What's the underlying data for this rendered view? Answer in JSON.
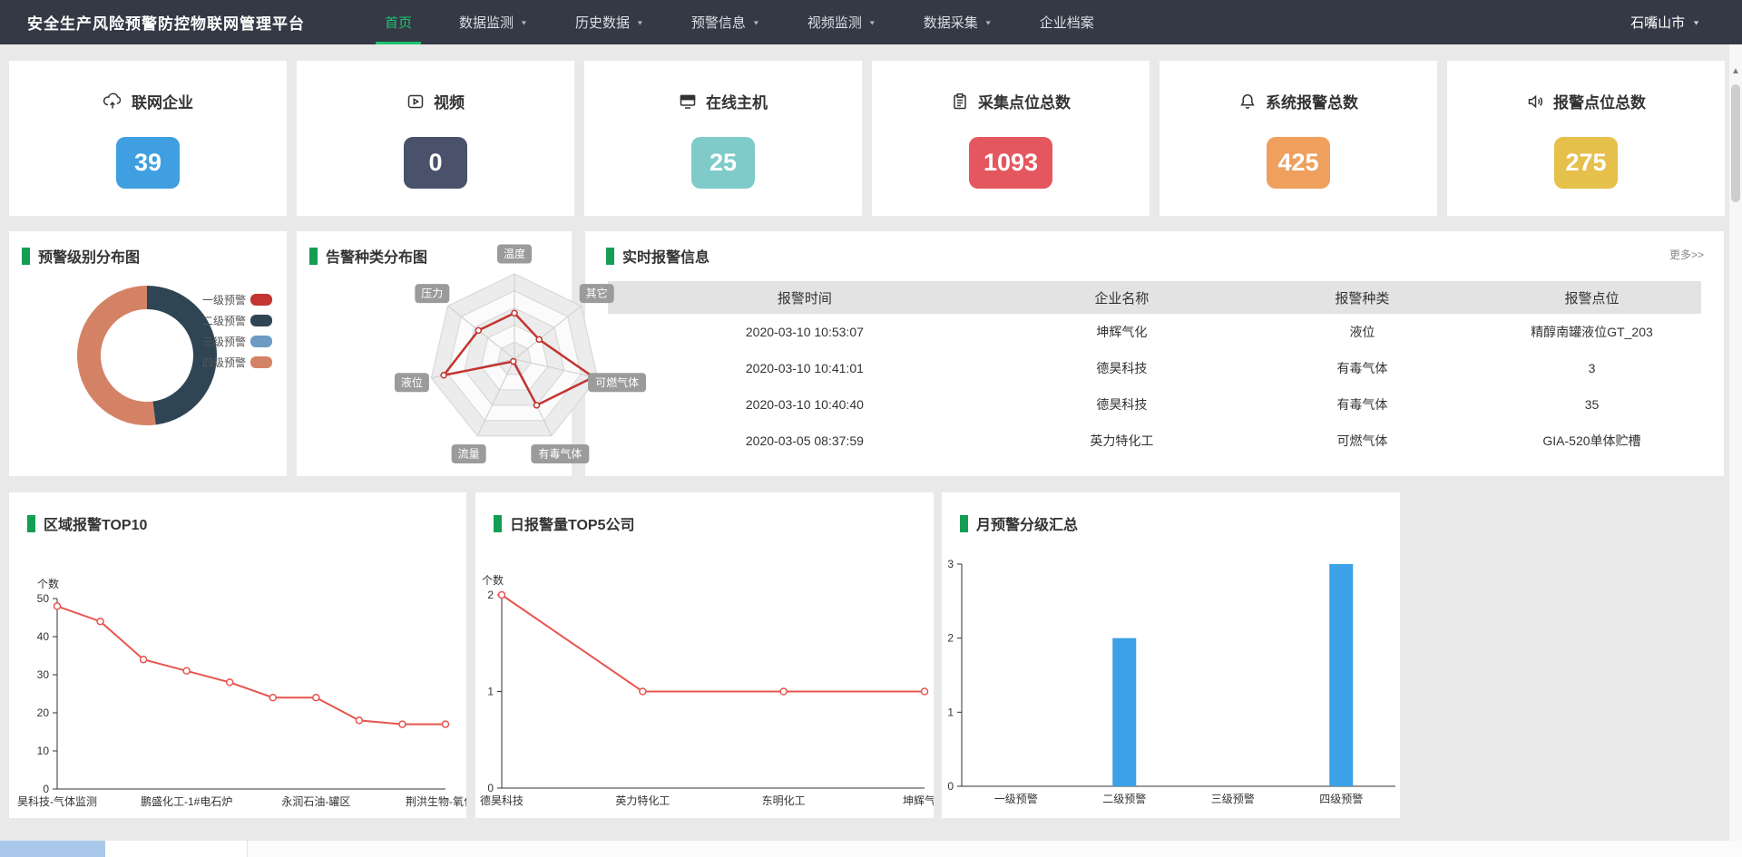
{
  "nav": {
    "title": "安全生产风险预警防控物联网管理平台",
    "items": [
      {
        "label": "首页",
        "caret": false,
        "active": true
      },
      {
        "label": "数据监测",
        "caret": true,
        "active": false
      },
      {
        "label": "历史数据",
        "caret": true,
        "active": false
      },
      {
        "label": "预警信息",
        "caret": true,
        "active": false
      },
      {
        "label": "视频监测",
        "caret": true,
        "active": false
      },
      {
        "label": "数据采集",
        "caret": true,
        "active": false
      },
      {
        "label": "企业档案",
        "caret": false,
        "active": false
      }
    ],
    "region": "石嘴山市"
  },
  "stats": [
    {
      "label": "联网企业",
      "value": "39",
      "color": "#3f9fe0",
      "icon": "cloud-link-icon"
    },
    {
      "label": "视频",
      "value": "0",
      "color": "#49516b",
      "icon": "video-icon"
    },
    {
      "label": "在线主机",
      "value": "25",
      "color": "#7ecbc9",
      "icon": "host-icon"
    },
    {
      "label": "采集点位总数",
      "value": "1093",
      "color": "#e4575f",
      "icon": "clipboard-icon"
    },
    {
      "label": "系统报警总数",
      "value": "425",
      "color": "#efa05d",
      "icon": "bell-icon"
    },
    {
      "label": "报警点位总数",
      "value": "275",
      "color": "#e5c04b",
      "icon": "speaker-icon"
    }
  ],
  "panels": {
    "level": {
      "title": "预警级别分布图"
    },
    "radar": {
      "title": "告警种类分布图"
    },
    "table": {
      "title": "实时报警信息",
      "more": "更多>>",
      "columns": [
        "报警时间",
        "企业名称",
        "报警种类",
        "报警点位"
      ],
      "rows": [
        [
          "2020-03-10 10:53:07",
          "坤辉气化",
          "液位",
          "精醇南罐液位GT_203"
        ],
        [
          "2020-03-10 10:41:01",
          "德昊科技",
          "有毒气体",
          "3"
        ],
        [
          "2020-03-10 10:40:40",
          "德昊科技",
          "有毒气体",
          "35"
        ],
        [
          "2020-03-05 08:37:59",
          "英力特化工",
          "可燃气体",
          "GIA-520单体贮槽"
        ]
      ]
    },
    "region10": {
      "title": "区域报警TOP10"
    },
    "daily5": {
      "title": "日报警量TOP5公司"
    },
    "monthly": {
      "title": "月预警分级汇总"
    }
  },
  "chart_data": [
    {
      "id": "level-pie",
      "type": "pie",
      "title": "预警级别分布图",
      "slices": [
        {
          "label": "一级预警",
          "color": "#c23531",
          "percent": 0
        },
        {
          "label": "二级预警",
          "color": "#2f4554",
          "percent": 48
        },
        {
          "label": "三级预警",
          "color": "#6b9bc3",
          "percent": 0
        },
        {
          "label": "四级预警",
          "color": "#d48265",
          "percent": 52
        }
      ],
      "legend_position": "right",
      "donut": true
    },
    {
      "id": "type-radar",
      "type": "radar",
      "title": "告警种类分布图",
      "indicators": [
        "温度",
        "其它",
        "可燃气体",
        "有毒气体",
        "流量",
        "液位",
        "压力"
      ],
      "values": [
        54,
        37,
        95,
        60,
        3,
        85,
        54
      ],
      "max": 100,
      "levels": 5,
      "line_color": "#c23531"
    },
    {
      "id": "region-line",
      "type": "line",
      "title": "区域报警TOP10",
      "ylabel": "个数",
      "ylim": [
        0,
        50
      ],
      "yticks": [
        0,
        10,
        20,
        30,
        40,
        50
      ],
      "values": [
        48,
        44,
        34,
        31,
        28,
        24,
        24,
        18,
        17,
        17
      ],
      "x_labels": [
        {
          "at": 0,
          "text": "昊科技-气体监测"
        },
        {
          "at": 3,
          "text": "鹏盛化工-1#电石炉"
        },
        {
          "at": 6,
          "text": "永润石油-罐区"
        },
        {
          "at": 9,
          "text": "荆洪生物-氧化反"
        }
      ],
      "color": "#e8544f",
      "grid": false
    },
    {
      "id": "daily-line",
      "type": "line",
      "title": "日报警量TOP5公司",
      "ylabel": "个数",
      "ylim": [
        0,
        2
      ],
      "yticks": [
        0,
        1,
        2
      ],
      "categories": [
        "德昊科技",
        "英力特化工",
        "东明化工",
        "坤辉气化"
      ],
      "values": [
        2,
        1,
        1,
        1
      ],
      "color": "#e8544f",
      "grid": false
    },
    {
      "id": "month-bar",
      "type": "bar",
      "title": "月预警分级汇总",
      "ylim": [
        0,
        3
      ],
      "yticks": [
        0,
        1,
        2,
        3
      ],
      "categories": [
        "一级预警",
        "二级预警",
        "三级预警",
        "四级预警"
      ],
      "values": [
        0,
        2,
        0,
        3
      ],
      "color": "#3ca1e6",
      "grid": false
    }
  ]
}
